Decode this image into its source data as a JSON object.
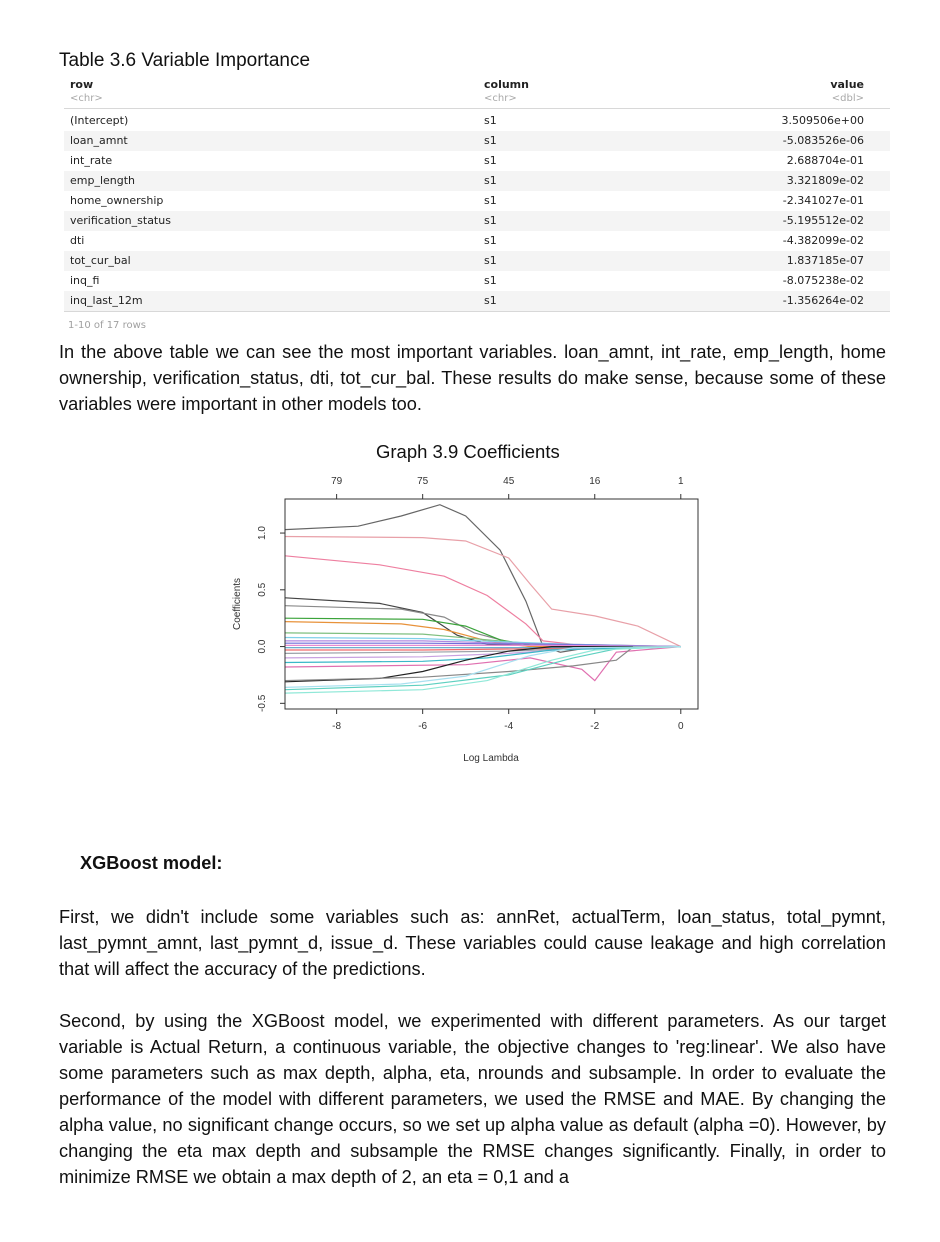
{
  "table": {
    "caption": "Table 3.6  Variable Importance",
    "columns": [
      {
        "name": "row",
        "type": "<chr>"
      },
      {
        "name": "column",
        "type": "<chr>"
      },
      {
        "name": "value",
        "type": "<dbl>"
      }
    ],
    "rows": [
      [
        "(Intercept)",
        "s1",
        "3.509506e+00"
      ],
      [
        "loan_amnt",
        "s1",
        "-5.083526e-06"
      ],
      [
        "int_rate",
        "s1",
        "2.688704e-01"
      ],
      [
        "emp_length",
        "s1",
        "3.321809e-02"
      ],
      [
        "home_ownership",
        "s1",
        "-2.341027e-01"
      ],
      [
        "verification_status",
        "s1",
        "-5.195512e-02"
      ],
      [
        "dti",
        "s1",
        "-4.382099e-02"
      ],
      [
        "tot_cur_bal",
        "s1",
        "1.837185e-07"
      ],
      [
        "inq_fi",
        "s1",
        "-8.075238e-02"
      ],
      [
        "inq_last_12m",
        "s1",
        "-1.356264e-02"
      ]
    ],
    "rows_note": "1-10 of 17 rows"
  },
  "paragraph1": "In the above table we can see the most important variables. loan_amnt, int_rate, emp_length, home ownership, verification_status, dti, tot_cur_bal. These results do make sense, because some of these variables were important in other models too.",
  "chart_data": {
    "type": "line",
    "title": "Graph 3.9 Coefficients",
    "xlabel": "Log Lambda",
    "ylabel": "Coefficients",
    "xlim": [
      -9.2,
      0.4
    ],
    "ylim": [
      -0.55,
      1.3
    ],
    "x_ticks": [
      -8,
      -6,
      -4,
      -2,
      0
    ],
    "y_ticks": [
      -0.5,
      0.0,
      0.5,
      1.0
    ],
    "top_axis": {
      "positions": [
        -8,
        -6,
        -4,
        -2,
        0
      ],
      "labels": [
        "79",
        "75",
        "45",
        "16",
        "1"
      ]
    },
    "series": [
      {
        "color": "#666666",
        "points": [
          [
            -9.2,
            1.03
          ],
          [
            -7.5,
            1.06
          ],
          [
            -6.5,
            1.15
          ],
          [
            -5.6,
            1.25
          ],
          [
            -5.0,
            1.15
          ],
          [
            -4.2,
            0.85
          ],
          [
            -3.6,
            0.4
          ],
          [
            -3.2,
            0.0
          ],
          [
            -2.8,
            -0.05
          ],
          [
            -2.0,
            0.0
          ],
          [
            0,
            0.0
          ]
        ]
      },
      {
        "color": "#e8a0a8",
        "points": [
          [
            -9.2,
            0.97
          ],
          [
            -6.0,
            0.96
          ],
          [
            -5.0,
            0.93
          ],
          [
            -4.0,
            0.78
          ],
          [
            -3.5,
            0.55
          ],
          [
            -3.0,
            0.33
          ],
          [
            -2.0,
            0.27
          ],
          [
            -1.0,
            0.18
          ],
          [
            0,
            0.0
          ]
        ]
      },
      {
        "color": "#ee7fa0",
        "points": [
          [
            -9.2,
            0.8
          ],
          [
            -7.0,
            0.72
          ],
          [
            -5.5,
            0.62
          ],
          [
            -4.5,
            0.45
          ],
          [
            -3.6,
            0.2
          ],
          [
            -3.2,
            0.05
          ],
          [
            -2.5,
            0.02
          ],
          [
            0,
            0.0
          ]
        ]
      },
      {
        "color": "#444444",
        "points": [
          [
            -9.2,
            0.43
          ],
          [
            -7.0,
            0.38
          ],
          [
            -6.0,
            0.3
          ],
          [
            -5.2,
            0.1
          ],
          [
            -4.5,
            0.02
          ],
          [
            -3.0,
            0.0
          ],
          [
            0,
            0.0
          ]
        ]
      },
      {
        "color": "#8a8a8a",
        "points": [
          [
            -9.2,
            0.36
          ],
          [
            -6.5,
            0.33
          ],
          [
            -5.5,
            0.26
          ],
          [
            -4.8,
            0.12
          ],
          [
            -4.0,
            0.04
          ],
          [
            -3.0,
            0.01
          ],
          [
            0,
            0.0
          ]
        ]
      },
      {
        "color": "#3aa33a",
        "points": [
          [
            -9.2,
            0.25
          ],
          [
            -6.0,
            0.24
          ],
          [
            -5.0,
            0.18
          ],
          [
            -4.2,
            0.06
          ],
          [
            -3.5,
            0.01
          ],
          [
            0,
            0.0
          ]
        ]
      },
      {
        "color": "#e8923a",
        "points": [
          [
            -9.2,
            0.22
          ],
          [
            -6.5,
            0.2
          ],
          [
            -5.5,
            0.15
          ],
          [
            -4.5,
            0.05
          ],
          [
            -3.5,
            0.0
          ],
          [
            0,
            0.0
          ]
        ]
      },
      {
        "color": "#7fbf7f",
        "points": [
          [
            -9.2,
            0.12
          ],
          [
            -6.0,
            0.11
          ],
          [
            -4.5,
            0.06
          ],
          [
            -3.0,
            0.01
          ],
          [
            0,
            0.0
          ]
        ]
      },
      {
        "color": "#7fd0e8",
        "points": [
          [
            -9.2,
            0.08
          ],
          [
            -6.0,
            0.07
          ],
          [
            -4.0,
            0.04
          ],
          [
            -2.5,
            0.02
          ],
          [
            0,
            0.0
          ]
        ]
      },
      {
        "color": "#b088e0",
        "points": [
          [
            -9.2,
            0.05
          ],
          [
            -6.0,
            0.05
          ],
          [
            -4.0,
            0.03
          ],
          [
            -2.0,
            0.01
          ],
          [
            0,
            0.0
          ]
        ]
      },
      {
        "color": "#6e6eda",
        "points": [
          [
            -9.2,
            0.03
          ],
          [
            -6.0,
            0.03
          ],
          [
            -3.0,
            0.02
          ],
          [
            -1.5,
            0.01
          ],
          [
            0,
            0.0
          ]
        ]
      },
      {
        "color": "#e88ad0",
        "points": [
          [
            -9.2,
            0.01
          ],
          [
            -6.0,
            0.01
          ],
          [
            -3.0,
            0.01
          ],
          [
            0,
            0.0
          ]
        ]
      },
      {
        "color": "#5aa0c8",
        "points": [
          [
            -9.2,
            -0.01
          ],
          [
            -6.0,
            -0.01
          ],
          [
            -3.0,
            -0.01
          ],
          [
            0,
            0.0
          ]
        ]
      },
      {
        "color": "#f06a6a",
        "points": [
          [
            -9.2,
            -0.03
          ],
          [
            -6.0,
            -0.03
          ],
          [
            -3.5,
            -0.02
          ],
          [
            -1.5,
            -0.01
          ],
          [
            0,
            0.0
          ]
        ]
      },
      {
        "color": "#9aa0a8",
        "points": [
          [
            -9.2,
            -0.06
          ],
          [
            -6.0,
            -0.05
          ],
          [
            -4.0,
            -0.04
          ],
          [
            -2.0,
            -0.01
          ],
          [
            0,
            0.0
          ]
        ]
      },
      {
        "color": "#c8a0e0",
        "points": [
          [
            -9.2,
            -0.1
          ],
          [
            -6.0,
            -0.09
          ],
          [
            -4.0,
            -0.06
          ],
          [
            -2.5,
            -0.02
          ],
          [
            0,
            0.0
          ]
        ]
      },
      {
        "color": "#3ab8c8",
        "points": [
          [
            -9.2,
            -0.14
          ],
          [
            -6.0,
            -0.13
          ],
          [
            -4.5,
            -0.1
          ],
          [
            -3.0,
            -0.03
          ],
          [
            0,
            0.0
          ]
        ]
      },
      {
        "color": "#e070b0",
        "points": [
          [
            -9.2,
            -0.18
          ],
          [
            -5.0,
            -0.16
          ],
          [
            -3.5,
            -0.1
          ],
          [
            -2.3,
            -0.2
          ],
          [
            -2.0,
            -0.3
          ],
          [
            -1.5,
            -0.05
          ],
          [
            0,
            0.0
          ]
        ]
      },
      {
        "color": "#222222",
        "points": [
          [
            -9.2,
            -0.31
          ],
          [
            -7.0,
            -0.28
          ],
          [
            -6.0,
            -0.22
          ],
          [
            -5.0,
            -0.12
          ],
          [
            -4.0,
            -0.04
          ],
          [
            -3.0,
            0.0
          ],
          [
            0,
            0.0
          ]
        ]
      },
      {
        "color": "#888888",
        "points": [
          [
            -9.2,
            -0.3
          ],
          [
            -6.0,
            -0.27
          ],
          [
            -4.0,
            -0.22
          ],
          [
            -2.5,
            -0.17
          ],
          [
            -1.5,
            -0.12
          ],
          [
            -1.1,
            0.0
          ],
          [
            0,
            0.0
          ]
        ]
      },
      {
        "color": "#5ed0c0",
        "points": [
          [
            -9.2,
            -0.38
          ],
          [
            -6.0,
            -0.34
          ],
          [
            -4.0,
            -0.25
          ],
          [
            -2.5,
            -0.1
          ],
          [
            -1.5,
            -0.02
          ],
          [
            0,
            0.0
          ]
        ]
      },
      {
        "color": "#90e8d8",
        "points": [
          [
            -9.2,
            -0.41
          ],
          [
            -6.0,
            -0.38
          ],
          [
            -4.5,
            -0.3
          ],
          [
            -3.0,
            -0.12
          ],
          [
            -2.0,
            -0.03
          ],
          [
            0,
            0.0
          ]
        ]
      },
      {
        "color": "#a8e0f0",
        "points": [
          [
            -9.2,
            -0.36
          ],
          [
            -6.5,
            -0.33
          ],
          [
            -5.0,
            -0.26
          ],
          [
            -3.5,
            -0.08
          ],
          [
            -2.5,
            -0.01
          ],
          [
            0,
            0.0
          ]
        ]
      }
    ]
  },
  "xgb_title": "XGBoost model:",
  "paragraph2": "First, we didn't include some variables such as: annRet, actualTerm, loan_status, total_pymnt, last_pymnt_amnt, last_pymnt_d, issue_d. These variables could cause leakage and high correlation that will affect the accuracy of the predictions.",
  "paragraph3": "Second, by using the XGBoost model, we experimented with different parameters. As our target variable is Actual Return, a continuous variable, the objective changes to 'reg:linear'. We also have some parameters such as max depth, alpha, eta, nrounds and subsample. In order to evaluate the performance of the model with different parameters, we used the RMSE and MAE. By changing the alpha value, no significant change occurs, so we set up alpha value as default (alpha =0). However, by changing the eta max depth and subsample the RMSE changes significantly. Finally, in order to minimize RMSE we obtain a max depth of 2, an eta = 0,1 and a"
}
